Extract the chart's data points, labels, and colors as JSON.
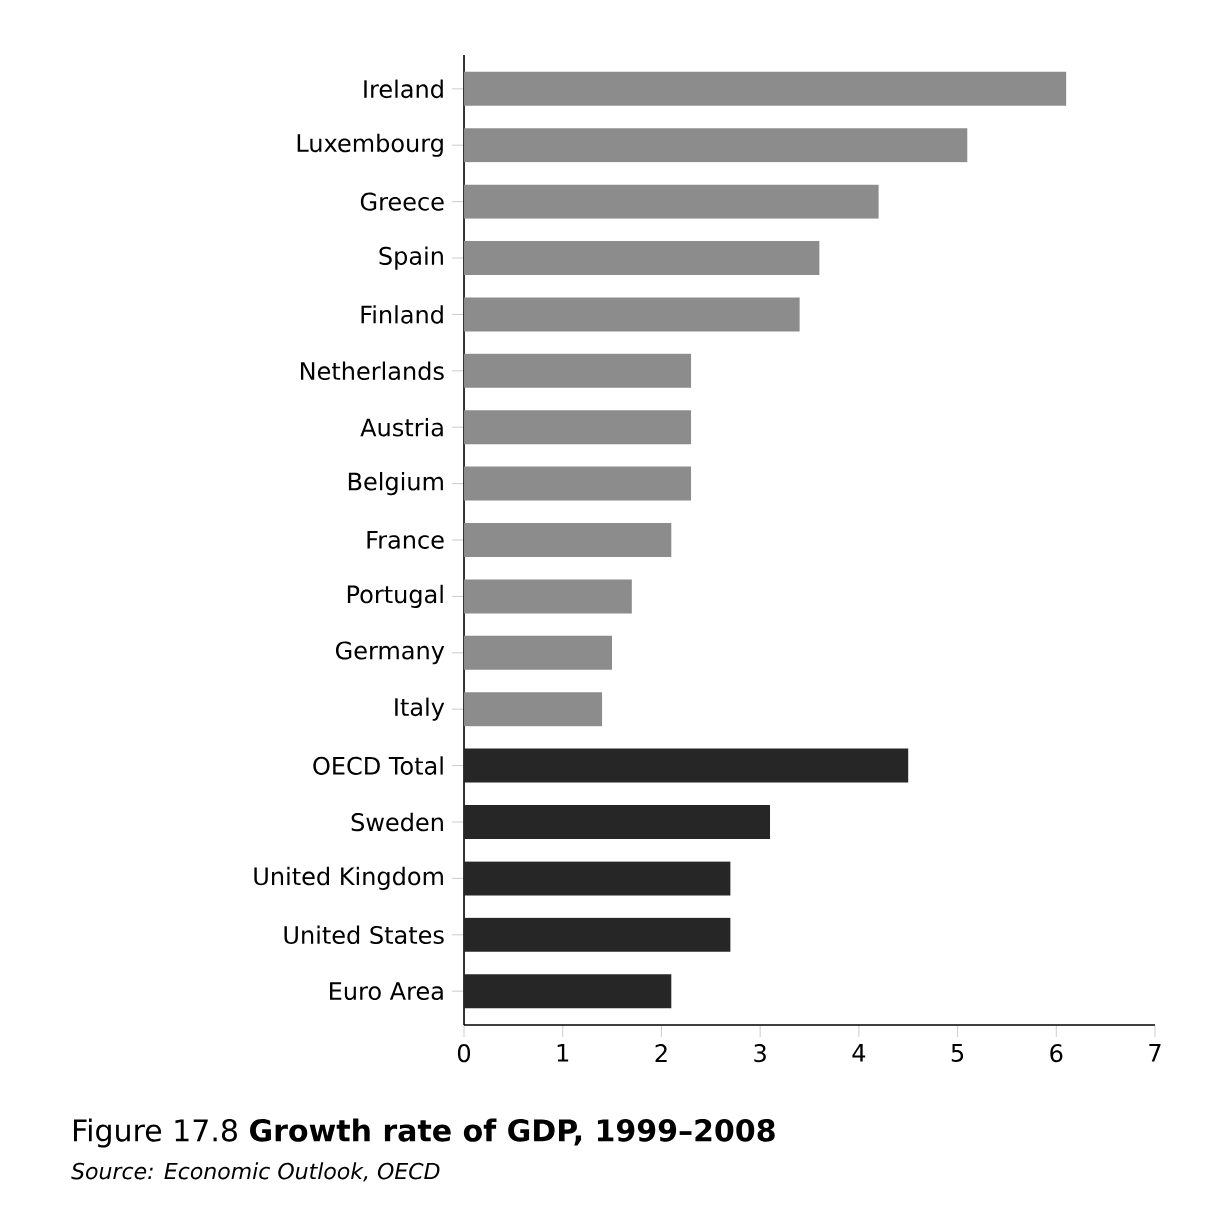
{
  "chart_data": {
    "type": "bar",
    "orientation": "horizontal",
    "title": "Figure 17.8 **Growth rate of GDP, 1999–2008**",
    "annotations": [
      "Source: Economic Outlook, OECD"
    ],
    "categories": [
      "Ireland",
      "Luxembourg",
      "Greece",
      "Spain",
      "Finland",
      "Netherlands",
      "Austria",
      "Belgium",
      "France",
      "Portugal",
      "Germany",
      "Italy",
      "OECD Total",
      "Sweden",
      "United Kingdom",
      "United States",
      "Euro Area"
    ],
    "values": [
      6.1,
      5.1,
      4.2,
      3.6,
      3.4,
      2.3,
      2.3,
      2.3,
      2.1,
      1.7,
      1.5,
      1.4,
      4.5,
      3.1,
      2.7,
      2.7,
      2.1
    ],
    "colors": [
      "#8c8c8c",
      "#8c8c8c",
      "#8c8c8c",
      "#8c8c8c",
      "#8c8c8c",
      "#8c8c8c",
      "#8c8c8c",
      "#8c8c8c",
      "#8c8c8c",
      "#8c8c8c",
      "#8c8c8c",
      "#8c8c8c",
      "#262626",
      "#262626",
      "#262626",
      "#262626",
      "#262626"
    ],
    "xlim": [
      0,
      7
    ],
    "xticks": [
      0,
      1,
      2,
      3,
      4,
      5,
      6,
      7
    ],
    "grid": false
  }
}
